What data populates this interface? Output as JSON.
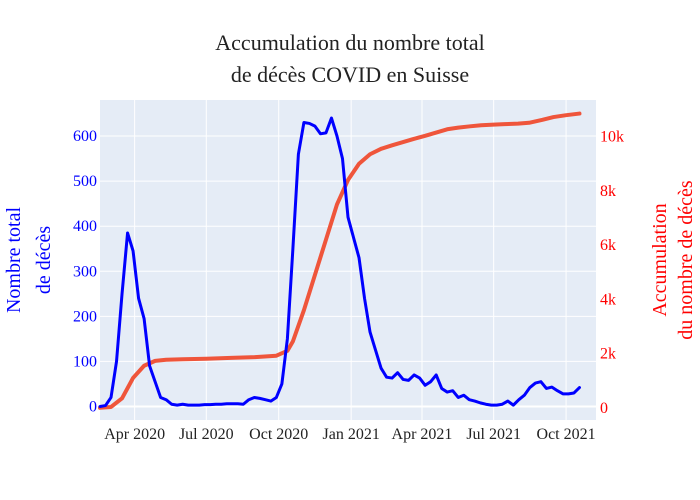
{
  "chart_data": {
    "type": "line",
    "title_lines": [
      "Accumulation du nombre total",
      "de décès COVID en Suisse"
    ],
    "y_left_label_lines": [
      "Nombre total",
      "de décès"
    ],
    "y_right_label_lines": [
      "Accumulation",
      "du nombre de décès"
    ],
    "left_color": "#0000ff",
    "right_color": "#ef553b",
    "plot_bg": "#e5ecf6",
    "grid": true,
    "x_range": [
      "2020-02-17",
      "2021-11-08"
    ],
    "y_left_range": [
      -30,
      680
    ],
    "y_right_range": [
      -450,
      11350
    ],
    "x_ticks": [
      {
        "date": "2020-04-01",
        "label": "Apr 2020"
      },
      {
        "date": "2020-07-01",
        "label": "Jul 2020"
      },
      {
        "date": "2020-10-01",
        "label": "Oct 2020"
      },
      {
        "date": "2021-01-01",
        "label": "Jan 2021"
      },
      {
        "date": "2021-04-01",
        "label": "Apr 2021"
      },
      {
        "date": "2021-07-01",
        "label": "Jul 2021"
      },
      {
        "date": "2021-10-01",
        "label": "Oct 2021"
      }
    ],
    "y_left_ticks": [
      {
        "value": 0,
        "label": "0"
      },
      {
        "value": 100,
        "label": "100"
      },
      {
        "value": 200,
        "label": "200"
      },
      {
        "value": 300,
        "label": "300"
      },
      {
        "value": 400,
        "label": "400"
      },
      {
        "value": 500,
        "label": "500"
      },
      {
        "value": 600,
        "label": "600"
      }
    ],
    "y_right_ticks": [
      {
        "value": 0,
        "label": "0"
      },
      {
        "value": 2000,
        "label": "2k"
      },
      {
        "value": 4000,
        "label": "4k"
      },
      {
        "value": 6000,
        "label": "6k"
      },
      {
        "value": 8000,
        "label": "8k"
      },
      {
        "value": 10000,
        "label": "10k"
      }
    ],
    "series": [
      {
        "axis": "left",
        "points": [
          [
            "2020-02-17",
            0
          ],
          [
            "2020-02-24",
            2
          ],
          [
            "2020-03-02",
            20
          ],
          [
            "2020-03-09",
            100
          ],
          [
            "2020-03-16",
            250
          ],
          [
            "2020-03-23",
            385
          ],
          [
            "2020-03-30",
            345
          ],
          [
            "2020-04-06",
            240
          ],
          [
            "2020-04-13",
            195
          ],
          [
            "2020-04-20",
            90
          ],
          [
            "2020-04-27",
            55
          ],
          [
            "2020-05-04",
            20
          ],
          [
            "2020-05-11",
            15
          ],
          [
            "2020-05-18",
            5
          ],
          [
            "2020-05-25",
            3
          ],
          [
            "2020-06-01",
            5
          ],
          [
            "2020-06-08",
            3
          ],
          [
            "2020-06-15",
            3
          ],
          [
            "2020-06-22",
            3
          ],
          [
            "2020-06-29",
            4
          ],
          [
            "2020-07-06",
            4
          ],
          [
            "2020-07-13",
            5
          ],
          [
            "2020-07-20",
            5
          ],
          [
            "2020-07-27",
            6
          ],
          [
            "2020-08-03",
            6
          ],
          [
            "2020-08-10",
            6
          ],
          [
            "2020-08-17",
            5
          ],
          [
            "2020-08-24",
            15
          ],
          [
            "2020-08-31",
            20
          ],
          [
            "2020-09-07",
            18
          ],
          [
            "2020-09-14",
            15
          ],
          [
            "2020-09-21",
            12
          ],
          [
            "2020-09-28",
            20
          ],
          [
            "2020-10-05",
            50
          ],
          [
            "2020-10-12",
            150
          ],
          [
            "2020-10-19",
            350
          ],
          [
            "2020-10-26",
            560
          ],
          [
            "2020-11-02",
            630
          ],
          [
            "2020-11-09",
            628
          ],
          [
            "2020-11-16",
            622
          ],
          [
            "2020-11-23",
            605
          ],
          [
            "2020-11-30",
            607
          ],
          [
            "2020-12-07",
            640
          ],
          [
            "2020-12-14",
            600
          ],
          [
            "2020-12-21",
            550
          ],
          [
            "2020-12-28",
            420
          ],
          [
            "2021-01-04",
            375
          ],
          [
            "2021-01-11",
            330
          ],
          [
            "2021-01-18",
            240
          ],
          [
            "2021-01-25",
            165
          ],
          [
            "2021-02-01",
            125
          ],
          [
            "2021-02-08",
            85
          ],
          [
            "2021-02-15",
            65
          ],
          [
            "2021-02-22",
            63
          ],
          [
            "2021-03-01",
            75
          ],
          [
            "2021-03-08",
            60
          ],
          [
            "2021-03-15",
            58
          ],
          [
            "2021-03-22",
            70
          ],
          [
            "2021-03-29",
            63
          ],
          [
            "2021-04-05",
            47
          ],
          [
            "2021-04-12",
            55
          ],
          [
            "2021-04-19",
            70
          ],
          [
            "2021-04-26",
            40
          ],
          [
            "2021-05-03",
            32
          ],
          [
            "2021-05-10",
            35
          ],
          [
            "2021-05-17",
            20
          ],
          [
            "2021-05-24",
            25
          ],
          [
            "2021-05-31",
            15
          ],
          [
            "2021-06-07",
            12
          ],
          [
            "2021-06-14",
            8
          ],
          [
            "2021-06-21",
            5
          ],
          [
            "2021-06-28",
            3
          ],
          [
            "2021-07-05",
            3
          ],
          [
            "2021-07-12",
            5
          ],
          [
            "2021-07-19",
            12
          ],
          [
            "2021-07-26",
            3
          ],
          [
            "2021-08-02",
            15
          ],
          [
            "2021-08-09",
            25
          ],
          [
            "2021-08-16",
            42
          ],
          [
            "2021-08-23",
            52
          ],
          [
            "2021-08-30",
            55
          ],
          [
            "2021-09-06",
            40
          ],
          [
            "2021-09-13",
            43
          ],
          [
            "2021-09-20",
            35
          ],
          [
            "2021-09-27",
            28
          ],
          [
            "2021-10-04",
            28
          ],
          [
            "2021-10-11",
            30
          ],
          [
            "2021-10-18",
            42
          ]
        ]
      },
      {
        "axis": "right",
        "points": [
          [
            "2020-02-17",
            0
          ],
          [
            "2020-03-02",
            30
          ],
          [
            "2020-03-16",
            350
          ],
          [
            "2020-03-30",
            1100
          ],
          [
            "2020-04-13",
            1550
          ],
          [
            "2020-04-27",
            1730
          ],
          [
            "2020-05-11",
            1770
          ],
          [
            "2020-06-01",
            1790
          ],
          [
            "2020-07-01",
            1810
          ],
          [
            "2020-08-01",
            1840
          ],
          [
            "2020-09-01",
            1870
          ],
          [
            "2020-09-28",
            1920
          ],
          [
            "2020-10-12",
            2100
          ],
          [
            "2020-10-19",
            2450
          ],
          [
            "2020-11-02",
            3600
          ],
          [
            "2020-11-16",
            4900
          ],
          [
            "2020-11-30",
            6200
          ],
          [
            "2020-12-14",
            7500
          ],
          [
            "2020-12-28",
            8400
          ],
          [
            "2021-01-11",
            9000
          ],
          [
            "2021-01-25",
            9350
          ],
          [
            "2021-02-08",
            9550
          ],
          [
            "2021-02-22",
            9680
          ],
          [
            "2021-03-08",
            9800
          ],
          [
            "2021-03-22",
            9920
          ],
          [
            "2021-04-05",
            10030
          ],
          [
            "2021-04-19",
            10150
          ],
          [
            "2021-05-03",
            10270
          ],
          [
            "2021-05-17",
            10330
          ],
          [
            "2021-06-01",
            10380
          ],
          [
            "2021-06-15",
            10420
          ],
          [
            "2021-07-01",
            10440
          ],
          [
            "2021-07-15",
            10460
          ],
          [
            "2021-08-01",
            10480
          ],
          [
            "2021-08-15",
            10510
          ],
          [
            "2021-09-01",
            10620
          ],
          [
            "2021-09-15",
            10720
          ],
          [
            "2021-10-01",
            10790
          ],
          [
            "2021-10-18",
            10850
          ]
        ]
      }
    ]
  }
}
